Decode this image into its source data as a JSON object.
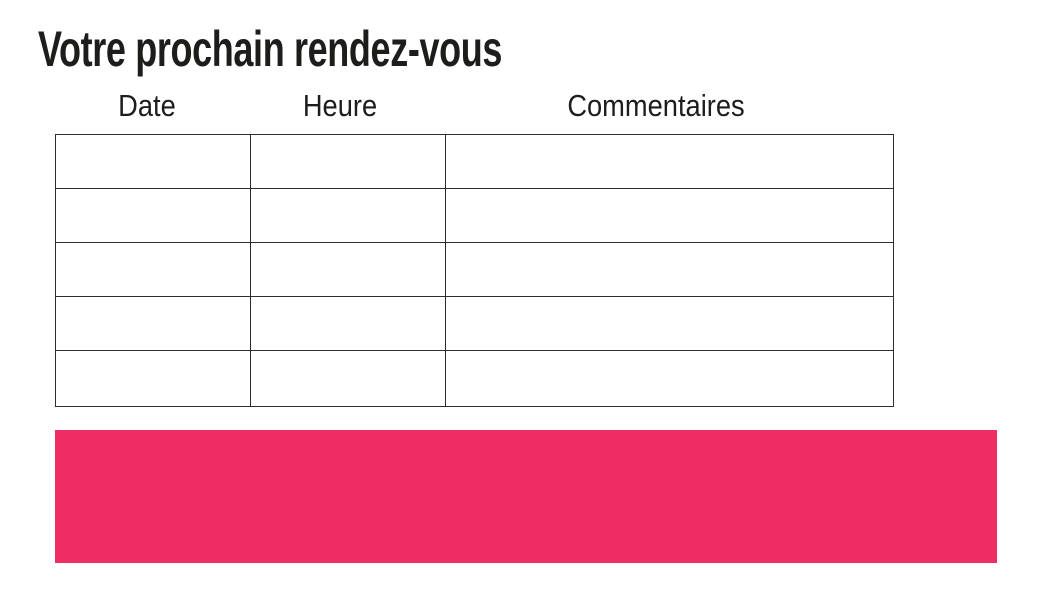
{
  "page": {
    "title": "Votre prochain rendez-vous",
    "background": "#ffffff"
  },
  "appointments_table": {
    "columns": [
      "Date",
      "Heure",
      "Commentaires"
    ],
    "rows": [
      [
        "",
        "",
        ""
      ],
      [
        "",
        "",
        ""
      ],
      [
        "",
        "",
        ""
      ],
      [
        "",
        "",
        ""
      ],
      [
        "",
        "",
        ""
      ]
    ]
  },
  "banner": {
    "color": "#ED2D64"
  },
  "colors": {
    "text": "#1d1d1b",
    "table_border": "#2e2c2d"
  }
}
